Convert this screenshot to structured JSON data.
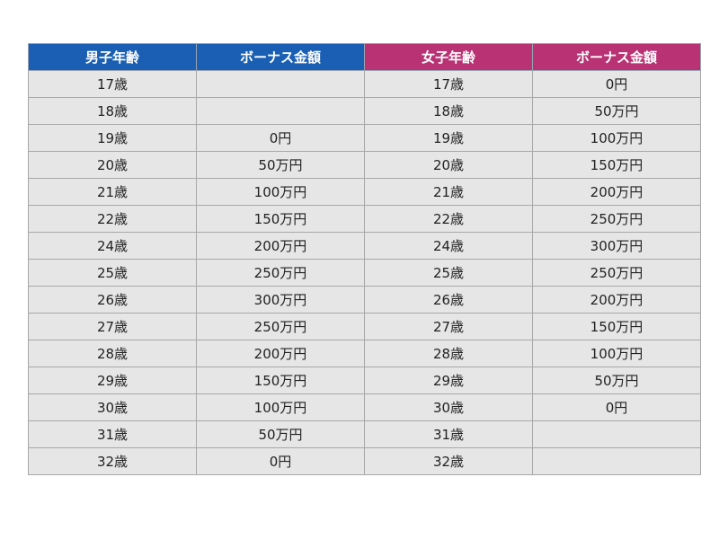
{
  "headers": {
    "male_age": "男子年齢",
    "male_bonus": "ボーナス金額",
    "female_age": "女子年齢",
    "female_bonus": "ボーナス金額"
  },
  "colors": {
    "male_header": "#1a5fb4",
    "female_header": "#b83274",
    "cell_background": "#e6e6e6"
  },
  "rows": [
    {
      "male_age": "17歳",
      "male_bonus": "",
      "female_age": "17歳",
      "female_bonus": "0円"
    },
    {
      "male_age": "18歳",
      "male_bonus": "",
      "female_age": "18歳",
      "female_bonus": "50万円"
    },
    {
      "male_age": "19歳",
      "male_bonus": "0円",
      "female_age": "19歳",
      "female_bonus": "100万円"
    },
    {
      "male_age": "20歳",
      "male_bonus": "50万円",
      "female_age": "20歳",
      "female_bonus": "150万円"
    },
    {
      "male_age": "21歳",
      "male_bonus": "100万円",
      "female_age": "21歳",
      "female_bonus": "200万円"
    },
    {
      "male_age": "22歳",
      "male_bonus": "150万円",
      "female_age": "22歳",
      "female_bonus": "250万円"
    },
    {
      "male_age": "24歳",
      "male_bonus": "200万円",
      "female_age": "24歳",
      "female_bonus": "300万円"
    },
    {
      "male_age": "25歳",
      "male_bonus": "250万円",
      "female_age": "25歳",
      "female_bonus": "250万円"
    },
    {
      "male_age": "26歳",
      "male_bonus": "300万円",
      "female_age": "26歳",
      "female_bonus": "200万円"
    },
    {
      "male_age": "27歳",
      "male_bonus": "250万円",
      "female_age": "27歳",
      "female_bonus": "150万円"
    },
    {
      "male_age": "28歳",
      "male_bonus": "200万円",
      "female_age": "28歳",
      "female_bonus": "100万円"
    },
    {
      "male_age": "29歳",
      "male_bonus": "150万円",
      "female_age": "29歳",
      "female_bonus": "50万円"
    },
    {
      "male_age": "30歳",
      "male_bonus": "100万円",
      "female_age": "30歳",
      "female_bonus": "0円"
    },
    {
      "male_age": "31歳",
      "male_bonus": "50万円",
      "female_age": "31歳",
      "female_bonus": ""
    },
    {
      "male_age": "32歳",
      "male_bonus": "0円",
      "female_age": "32歳",
      "female_bonus": ""
    }
  ]
}
